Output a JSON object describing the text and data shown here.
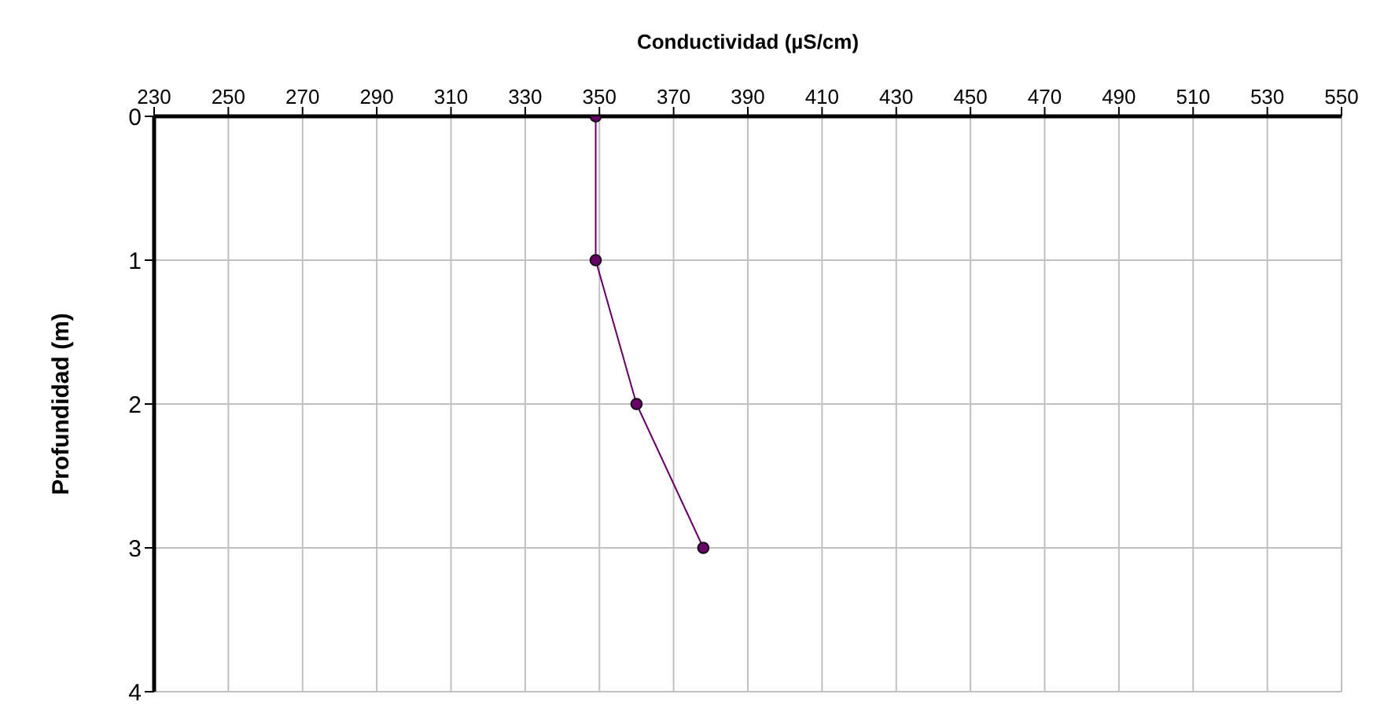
{
  "chart_data": {
    "type": "line",
    "xlabel": "Conductividad (µS/cm)",
    "ylabel": "Profundidad (m)",
    "series": [
      {
        "color": "#660066",
        "x": [
          349,
          349,
          360,
          378
        ],
        "values": [
          0,
          1,
          2,
          3
        ]
      }
    ],
    "xlim": [
      230,
      550
    ],
    "xticks": [
      230,
      250,
      270,
      290,
      310,
      330,
      350,
      370,
      390,
      410,
      430,
      450,
      470,
      490,
      510,
      530,
      550
    ],
    "ylim": [
      4,
      0
    ],
    "yticks": [
      0,
      1,
      2,
      3,
      4
    ],
    "grid": true,
    "marker": "circle"
  }
}
